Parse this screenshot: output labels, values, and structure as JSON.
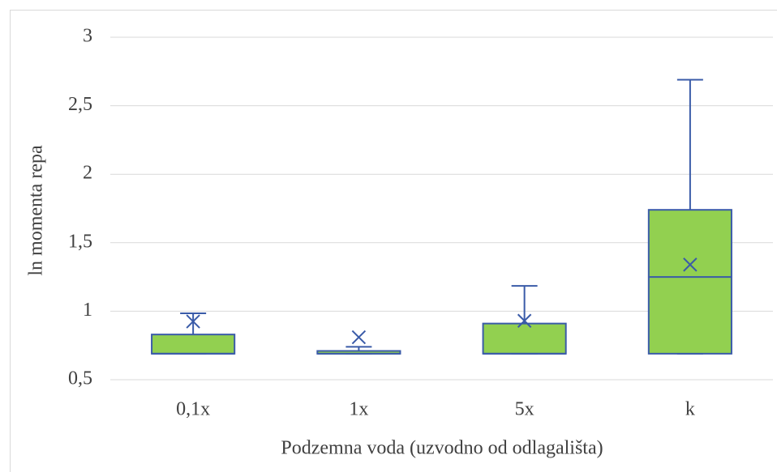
{
  "chart_data": {
    "type": "box",
    "xlabel": "Podzemna voda (uzvodno od odlagališta)",
    "ylabel": "ln momenta repa",
    "categories": [
      "0,1x",
      "1x",
      "5x",
      "k"
    ],
    "boxes": [
      {
        "min": 0.69,
        "q1": 0.69,
        "median": 0.69,
        "q3": 0.83,
        "max": 0.985,
        "mean": 0.925
      },
      {
        "min": 0.69,
        "q1": 0.69,
        "median": 0.69,
        "q3": 0.71,
        "max": 0.74,
        "mean": 0.81
      },
      {
        "min": 0.69,
        "q1": 0.69,
        "median": 0.69,
        "q3": 0.91,
        "max": 1.185,
        "mean": 0.93
      },
      {
        "min": 0.69,
        "q1": 0.69,
        "median": 1.25,
        "q3": 1.74,
        "max": 2.69,
        "mean": 1.34
      }
    ],
    "fill_color": "#92d050",
    "line_color": "#3a5ba8",
    "ylim": [
      0.5,
      3
    ],
    "yticks": [
      {
        "value": 0.5,
        "label": "0,5"
      },
      1,
      {
        "value": 1.5,
        "label": "1,5"
      },
      2,
      {
        "value": 2.5,
        "label": "2,5"
      },
      3
    ],
    "grid": true
  }
}
